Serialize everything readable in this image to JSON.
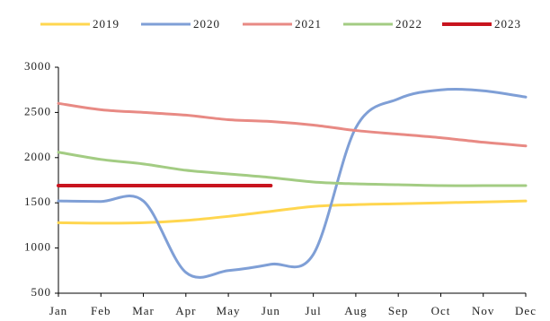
{
  "chart_data": {
    "type": "line",
    "categories": [
      "Jan",
      "Feb",
      "Mar",
      "Apr",
      "May",
      "Jun",
      "Jul",
      "Aug",
      "Sep",
      "Oct",
      "Nov",
      "Dec"
    ],
    "series": [
      {
        "name": "2019",
        "color": "#ffd64f",
        "values": [
          1280,
          1275,
          1280,
          1305,
          1350,
          1405,
          1460,
          1480,
          1490,
          1500,
          1510,
          1520
        ]
      },
      {
        "name": "2020",
        "color": "#7f9fd6",
        "values": [
          1520,
          1515,
          1520,
          730,
          750,
          820,
          930,
          2330,
          2650,
          2750,
          2740,
          2670
        ]
      },
      {
        "name": "2021",
        "color": "#e88a84",
        "values": [
          2600,
          2530,
          2500,
          2470,
          2420,
          2400,
          2360,
          2300,
          2260,
          2220,
          2170,
          2130
        ]
      },
      {
        "name": "2022",
        "color": "#a3cc83",
        "values": [
          2060,
          1980,
          1930,
          1860,
          1820,
          1780,
          1730,
          1710,
          1700,
          1690,
          1690,
          1690
        ]
      },
      {
        "name": "2023",
        "color": "#c8141e",
        "values": [
          1690,
          1690,
          1690,
          1690,
          1690,
          1690,
          null,
          null,
          null,
          null,
          null,
          null
        ]
      }
    ],
    "ylim": [
      500,
      3000
    ],
    "yticks": [
      500,
      1000,
      1500,
      2000,
      2500,
      3000
    ],
    "grid": false,
    "legend": "top"
  }
}
